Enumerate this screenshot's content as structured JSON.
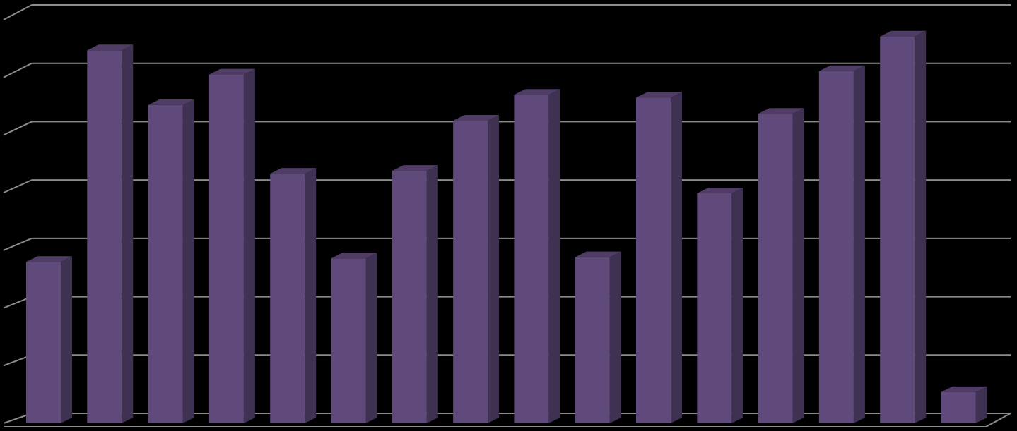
{
  "chart_data": {
    "type": "bar3d",
    "categories": [
      null,
      null,
      null,
      null,
      null,
      null,
      null,
      null,
      null,
      null,
      null,
      null,
      null,
      null,
      null,
      null
    ],
    "values": [
      2.8,
      6.47,
      5.52,
      6.05,
      4.33,
      2.86,
      4.38,
      5.25,
      5.7,
      2.88,
      5.65,
      3.99,
      5.37,
      6.11,
      6.71,
      0.54
    ],
    "color": "#604a7b",
    "side_color": "#3f3151",
    "top_color": "#4f3d66",
    "ylim": [
      0,
      7
    ],
    "yticks": [
      0,
      1,
      2,
      3,
      4,
      5,
      6,
      7
    ],
    "grid": true
  }
}
